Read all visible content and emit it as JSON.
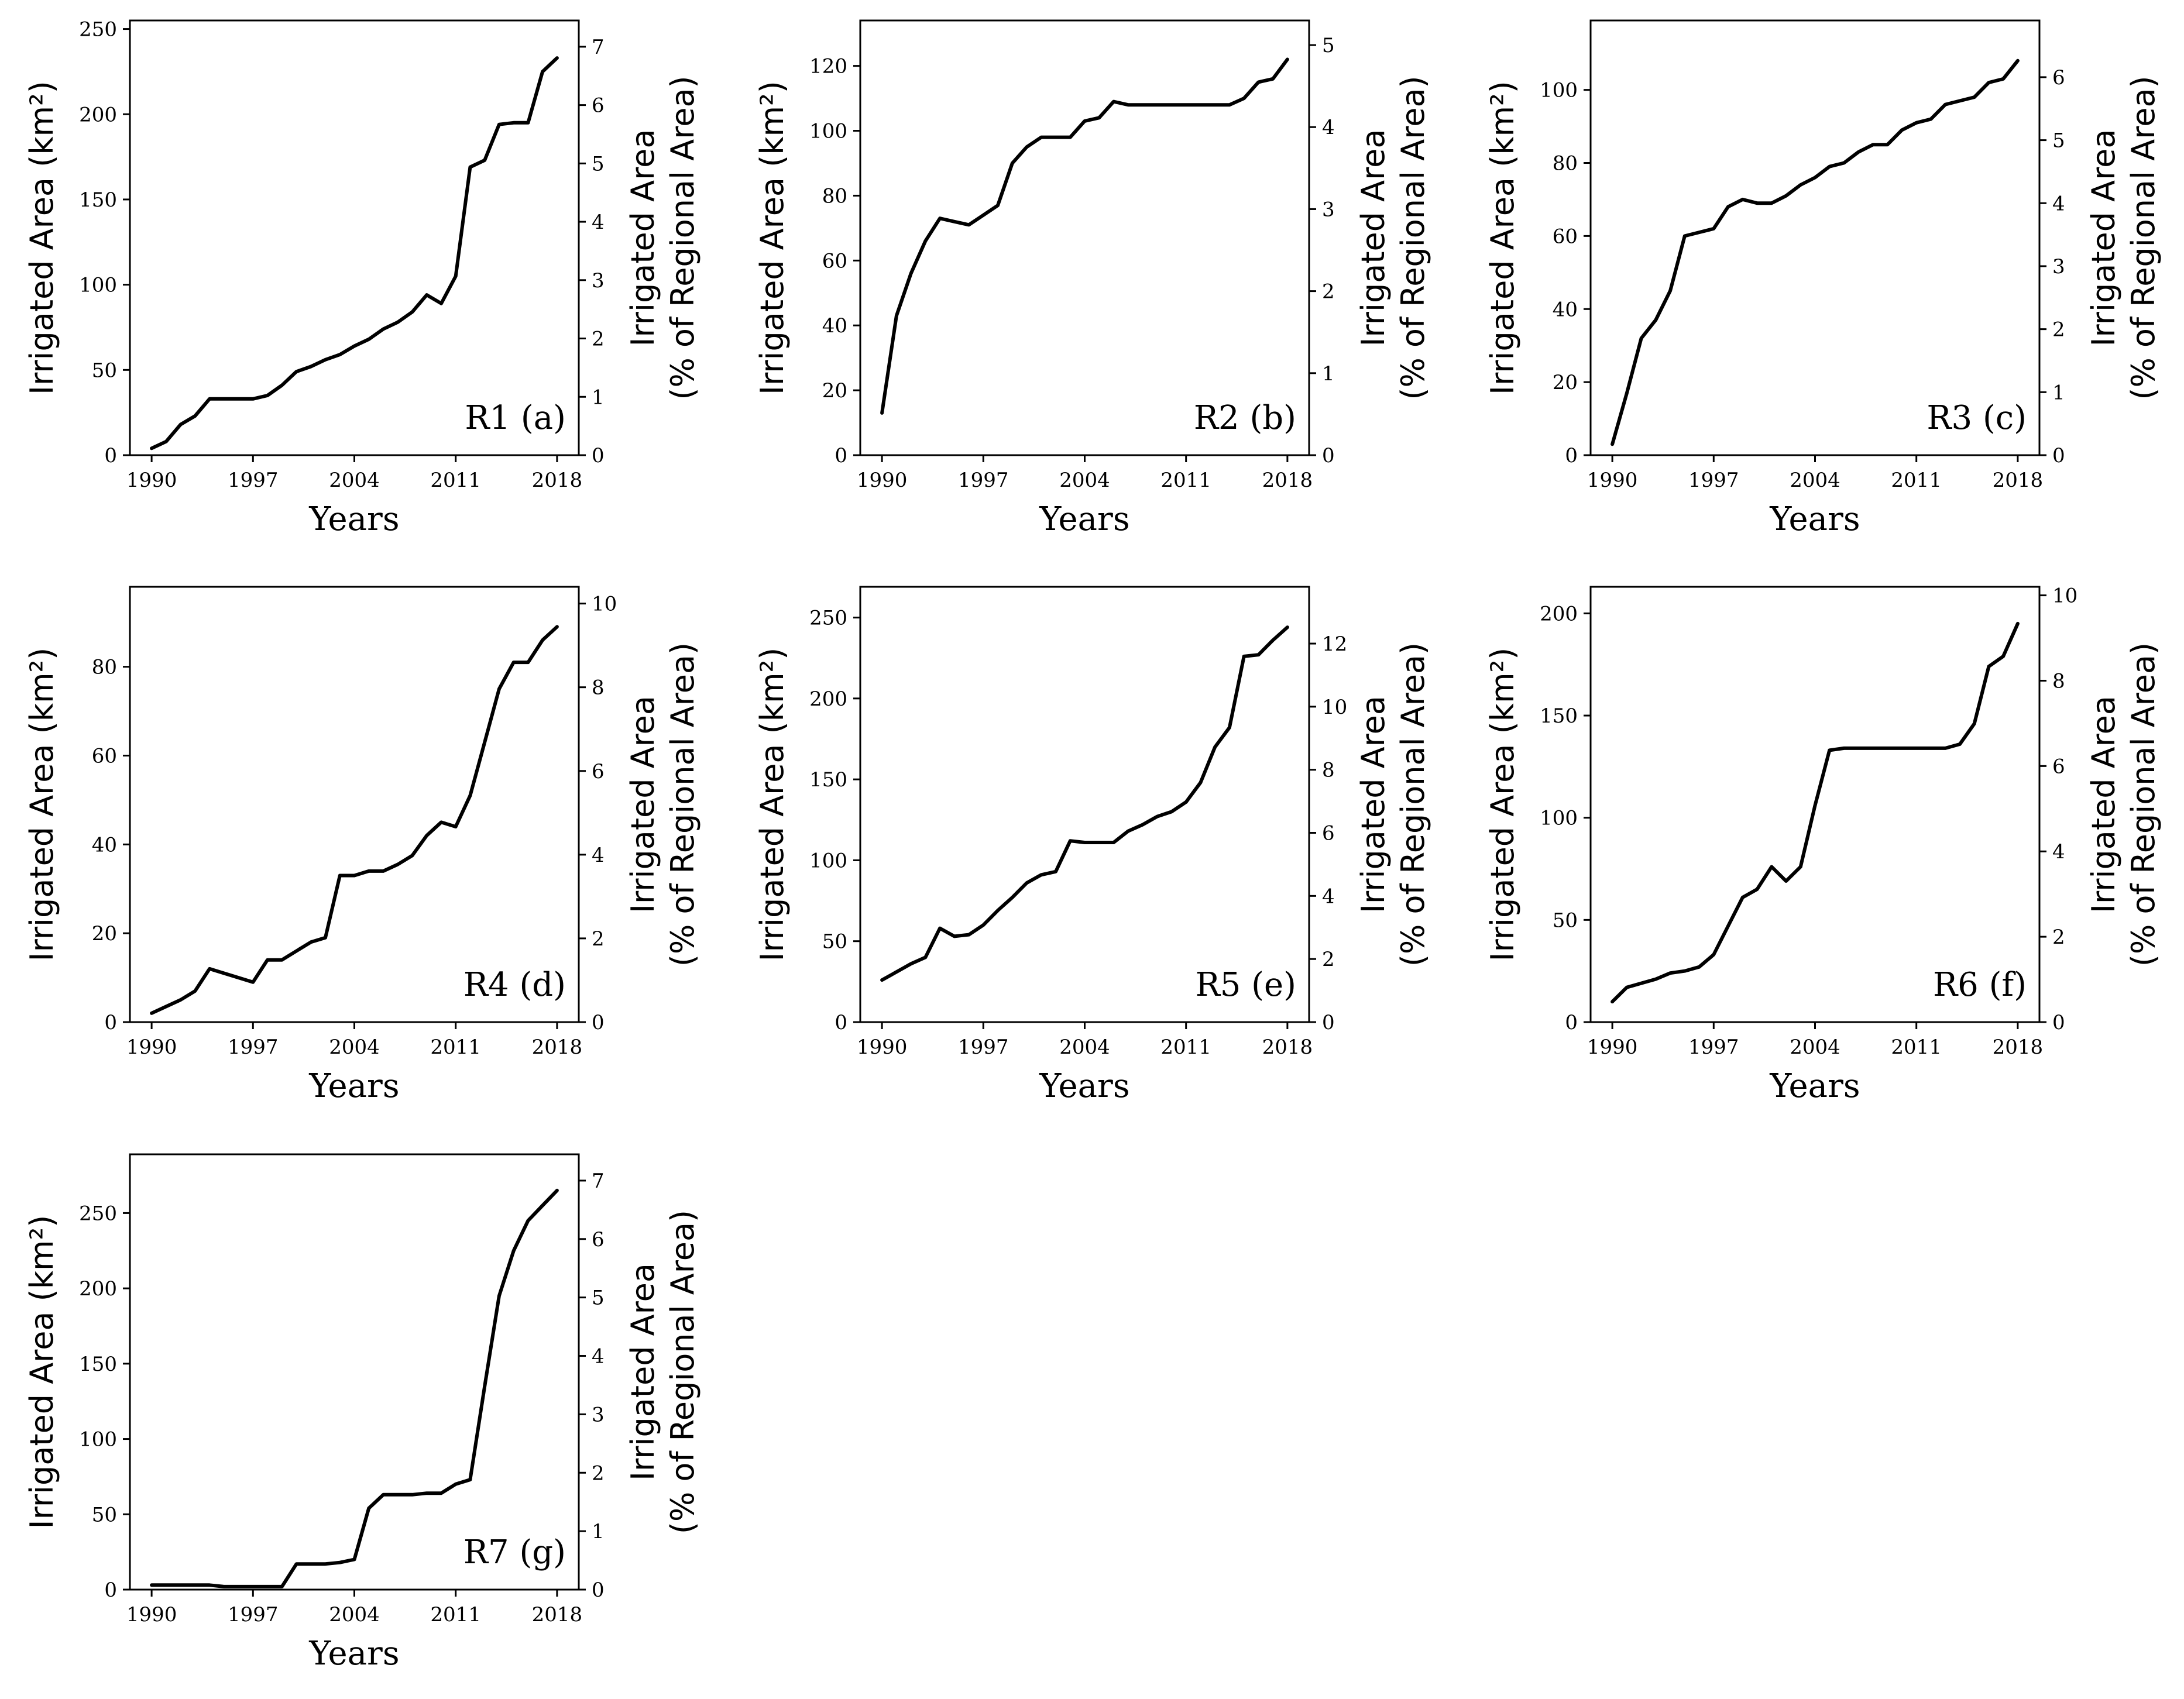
{
  "figure": {
    "background": "#ffffff",
    "line_color": "#000000"
  },
  "chart_data": [
    {
      "type": "line",
      "panel": "R1 (a)",
      "xlabel": "Years",
      "ylabel": "Irrigated Area (km²)",
      "ylabel2": [
        "Irrigated Area",
        "(% of Regional Area)"
      ],
      "xticks": [
        1990,
        1997,
        2004,
        2011,
        2018
      ],
      "xlim": [
        1988.5,
        2019.5
      ],
      "ylim": [
        0,
        255
      ],
      "yticks": [
        0,
        50,
        100,
        150,
        200,
        250
      ],
      "y2ticks": [
        0,
        1,
        2,
        3,
        4,
        5,
        6,
        7
      ],
      "y2_max_at_ylim": 7.45,
      "x": [
        1990,
        1991,
        1992,
        1993,
        1994,
        1995,
        1996,
        1997,
        1998,
        1999,
        2000,
        2001,
        2002,
        2003,
        2004,
        2005,
        2006,
        2007,
        2008,
        2009,
        2010,
        2011,
        2012,
        2013,
        2014,
        2015,
        2016,
        2017,
        2018
      ],
      "values": [
        4,
        8,
        18,
        23,
        33,
        33,
        33,
        33,
        35,
        41,
        49,
        52,
        56,
        59,
        64,
        68,
        74,
        78,
        84,
        94,
        89,
        105,
        169,
        173,
        194,
        195,
        195,
        225,
        233
      ]
    },
    {
      "type": "line",
      "panel": "R2 (b)",
      "xlabel": "Years",
      "ylabel": "Irrigated Area (km²)",
      "ylabel2": [
        "Irrigated Area",
        "(% of Regional Area)"
      ],
      "xticks": [
        1990,
        1997,
        2004,
        2011,
        2018
      ],
      "xlim": [
        1988.5,
        2019.5
      ],
      "ylim": [
        0,
        134
      ],
      "yticks": [
        0,
        20,
        40,
        60,
        80,
        100,
        120
      ],
      "y2ticks": [
        0,
        1,
        2,
        3,
        4,
        5
      ],
      "y2_max_at_ylim": 5.3,
      "x": [
        1990,
        1991,
        1992,
        1993,
        1994,
        1995,
        1996,
        1997,
        1998,
        1999,
        2000,
        2001,
        2002,
        2003,
        2004,
        2005,
        2006,
        2007,
        2008,
        2009,
        2010,
        2011,
        2012,
        2013,
        2014,
        2015,
        2016,
        2017,
        2018
      ],
      "values": [
        13,
        43,
        56,
        66,
        73,
        72,
        71,
        74,
        77,
        90,
        95,
        98,
        98,
        98,
        103,
        104,
        109,
        108,
        108,
        108,
        108,
        108,
        108,
        108,
        108,
        110,
        115,
        116,
        122
      ]
    },
    {
      "type": "line",
      "panel": "R3 (c)",
      "xlabel": "Years",
      "ylabel": "Irrigated Area (km²)",
      "ylabel2": [
        "Irrigated Area",
        "(% of Regional Area)"
      ],
      "xticks": [
        1990,
        1997,
        2004,
        2011,
        2018
      ],
      "xlim": [
        1988.5,
        2019.5
      ],
      "ylim": [
        0,
        119
      ],
      "yticks": [
        0,
        20,
        40,
        60,
        80,
        100
      ],
      "y2ticks": [
        0,
        1,
        2,
        3,
        4,
        5,
        6
      ],
      "y2_max_at_ylim": 6.9,
      "x": [
        1990,
        1991,
        1992,
        1993,
        1994,
        1995,
        1996,
        1997,
        1998,
        1999,
        2000,
        2001,
        2002,
        2003,
        2004,
        2005,
        2006,
        2007,
        2008,
        2009,
        2010,
        2011,
        2012,
        2013,
        2014,
        2015,
        2016,
        2017,
        2018
      ],
      "values": [
        3,
        17,
        32,
        37,
        45,
        60,
        61,
        62,
        68,
        70,
        69,
        69,
        71,
        74,
        76,
        79,
        80,
        83,
        85,
        85,
        89,
        91,
        92,
        96,
        97,
        98,
        102,
        103,
        108
      ]
    },
    {
      "type": "line",
      "panel": "R4 (d)",
      "xlabel": "Years",
      "ylabel": "Irrigated Area (km²)",
      "ylabel2": [
        "Irrigated Area",
        "(% of Regional Area)"
      ],
      "xticks": [
        1990,
        1997,
        2004,
        2011,
        2018
      ],
      "xlim": [
        1988.5,
        2019.5
      ],
      "ylim": [
        0,
        98
      ],
      "yticks": [
        0,
        20,
        40,
        60,
        80
      ],
      "y2ticks": [
        0,
        2,
        4,
        6,
        8,
        10
      ],
      "y2_max_at_ylim": 10.4,
      "x": [
        1990,
        1991,
        1992,
        1993,
        1994,
        1995,
        1996,
        1997,
        1998,
        1999,
        2000,
        2001,
        2002,
        2003,
        2004,
        2005,
        2006,
        2007,
        2008,
        2009,
        2010,
        2011,
        2012,
        2013,
        2014,
        2015,
        2016,
        2017,
        2018
      ],
      "values": [
        2,
        3.5,
        5,
        7,
        12,
        11,
        10,
        9,
        14,
        14,
        16,
        18,
        19,
        33,
        33,
        34,
        34,
        35.5,
        37.5,
        42,
        45,
        44,
        51,
        63,
        75,
        81,
        81,
        86,
        89
      ]
    },
    {
      "type": "line",
      "panel": "R5 (e)",
      "xlabel": "Years",
      "ylabel": "Irrigated Area (km²)",
      "ylabel2": [
        "Irrigated Area",
        "(% of Regional Area)"
      ],
      "xticks": [
        1990,
        1997,
        2004,
        2011,
        2018
      ],
      "xlim": [
        1988.5,
        2019.5
      ],
      "ylim": [
        0,
        269
      ],
      "yticks": [
        0,
        50,
        100,
        150,
        200,
        250
      ],
      "y2ticks": [
        0,
        2,
        4,
        6,
        8,
        10,
        12
      ],
      "y2_max_at_ylim": 13.8,
      "x": [
        1990,
        1991,
        1992,
        1993,
        1994,
        1995,
        1996,
        1997,
        1998,
        1999,
        2000,
        2001,
        2002,
        2003,
        2004,
        2005,
        2006,
        2007,
        2008,
        2009,
        2010,
        2011,
        2012,
        2013,
        2014,
        2015,
        2016,
        2017,
        2018
      ],
      "values": [
        26,
        31,
        36,
        40,
        58,
        53,
        54,
        60,
        69,
        77,
        86,
        91,
        93,
        112,
        111,
        111,
        111,
        118,
        122,
        127,
        130,
        136,
        148,
        170,
        182,
        226,
        227,
        236,
        244
      ]
    },
    {
      "type": "line",
      "panel": "R6 (f)",
      "xlabel": "Years",
      "ylabel": "Irrigated Area (km²)",
      "ylabel2": [
        "Irrigated Area",
        "(% of Regional Area)"
      ],
      "xticks": [
        1990,
        1997,
        2004,
        2011,
        2018
      ],
      "xlim": [
        1988.5,
        2019.5
      ],
      "ylim": [
        0,
        213
      ],
      "yticks": [
        0,
        50,
        100,
        150,
        200
      ],
      "y2ticks": [
        0,
        2,
        4,
        6,
        8,
        10
      ],
      "y2_max_at_ylim": 10.2,
      "x": [
        1990,
        1991,
        1992,
        1993,
        1994,
        1995,
        1996,
        1997,
        1998,
        1999,
        2000,
        2001,
        2002,
        2003,
        2004,
        2005,
        2006,
        2007,
        2008,
        2009,
        2010,
        2011,
        2012,
        2013,
        2014,
        2015,
        2016,
        2017,
        2018
      ],
      "values": [
        10,
        17,
        19,
        21,
        24,
        25,
        27,
        33,
        47,
        61,
        65,
        76,
        69,
        76,
        106,
        133,
        134,
        134,
        134,
        134,
        134,
        134,
        134,
        134,
        136,
        146,
        174,
        179,
        195
      ]
    },
    {
      "type": "line",
      "panel": "R7 (g)",
      "xlabel": "Years",
      "ylabel": "Irrigated Area (km²)",
      "ylabel2": [
        "Irrigated Area",
        "(% of Regional Area)"
      ],
      "xticks": [
        1990,
        1997,
        2004,
        2011,
        2018
      ],
      "xlim": [
        1988.5,
        2019.5
      ],
      "ylim": [
        0,
        289
      ],
      "yticks": [
        0,
        50,
        100,
        150,
        200,
        250
      ],
      "y2ticks": [
        0,
        1,
        2,
        3,
        4,
        5,
        6,
        7
      ],
      "y2_max_at_ylim": 7.45,
      "x": [
        1990,
        1991,
        1992,
        1993,
        1994,
        1995,
        1996,
        1997,
        1998,
        1999,
        2000,
        2001,
        2002,
        2003,
        2004,
        2005,
        2006,
        2007,
        2008,
        2009,
        2010,
        2011,
        2012,
        2013,
        2014,
        2015,
        2016,
        2017,
        2018
      ],
      "values": [
        3,
        3,
        3,
        3,
        3,
        2,
        2,
        2,
        2,
        2,
        17,
        17,
        17,
        18,
        20,
        54,
        63,
        63,
        63,
        64,
        64,
        70,
        73,
        135,
        195,
        225,
        245,
        255,
        265
      ]
    }
  ]
}
